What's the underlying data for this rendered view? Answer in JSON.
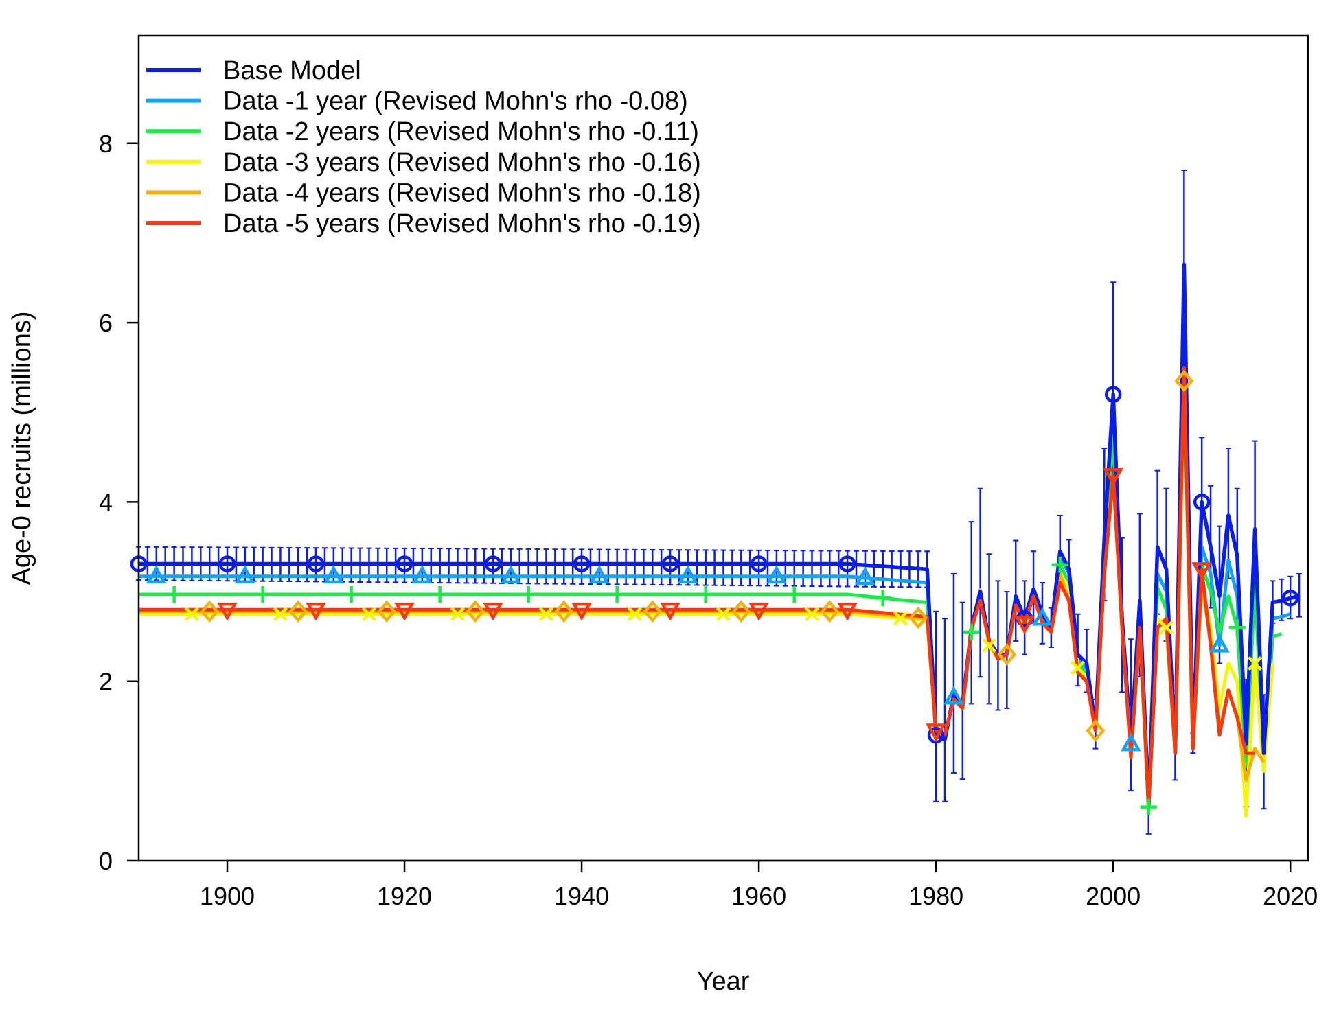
{
  "chart_data": {
    "type": "line",
    "title": "",
    "xlabel": "Year",
    "ylabel": "Age-0 recruits (millions)",
    "xlim": [
      1890,
      2022
    ],
    "ylim": [
      0,
      9.2
    ],
    "xticks": [
      1900,
      1920,
      1940,
      1960,
      1980,
      2000,
      2020
    ],
    "yticks": [
      0,
      2,
      4,
      6,
      8
    ],
    "legend_position": "top-left",
    "grid": false,
    "series": [
      {
        "name": "Base Model",
        "color": "#0a1ee8",
        "marker": "circle",
        "x": [
          1890,
          1979,
          1980,
          1981,
          1982,
          1983,
          1984,
          1985,
          1986,
          1987,
          1988,
          1989,
          1990,
          1991,
          1992,
          1993,
          1994,
          1995,
          1996,
          1997,
          1998,
          1999,
          2000,
          2001,
          2002,
          2003,
          2004,
          2005,
          2006,
          2007,
          2008,
          2009,
          2010,
          2011,
          2012,
          2013,
          2014,
          2015,
          2016,
          2017,
          2018,
          2019,
          2020,
          2021
        ],
        "values": [
          3.31,
          3.25,
          1.4,
          1.35,
          1.85,
          1.75,
          2.6,
          3.0,
          2.45,
          2.3,
          2.3,
          2.95,
          2.7,
          3.03,
          2.75,
          2.6,
          3.45,
          3.25,
          2.3,
          2.2,
          1.5,
          3.6,
          5.2,
          2.7,
          1.3,
          2.9,
          0.6,
          3.5,
          3.25,
          1.2,
          6.65,
          1.3,
          4.0,
          3.5,
          2.95,
          3.85,
          3.4,
          1.3,
          3.7,
          1.2,
          2.88,
          2.9,
          2.93,
          2.95
        ],
        "ci_low": [
          3.13,
          3.05,
          0.66,
          0.66,
          0.98,
          0.91,
          1.75,
          2.05,
          1.75,
          1.68,
          1.7,
          2.45,
          2.3,
          2.65,
          2.42,
          2.38,
          3.12,
          2.92,
          1.95,
          1.88,
          1.25,
          2.9,
          4.15,
          1.88,
          0.78,
          2.05,
          0.3,
          2.75,
          2.45,
          0.9,
          5.7,
          1.2,
          3.28,
          2.82,
          2.2,
          3.15,
          2.7,
          0.6,
          3.0,
          0.58,
          2.65,
          2.68,
          2.7,
          2.72
        ],
        "ci_high": [
          3.5,
          3.45,
          2.78,
          2.7,
          3.2,
          2.88,
          3.78,
          4.15,
          3.42,
          3.12,
          3.0,
          3.57,
          3.12,
          3.45,
          3.1,
          2.82,
          3.85,
          3.58,
          2.75,
          2.58,
          1.8,
          4.6,
          6.45,
          3.6,
          2.47,
          3.87,
          0.95,
          4.35,
          4.15,
          1.5,
          7.7,
          1.42,
          4.72,
          4.18,
          3.73,
          4.6,
          4.15,
          2.02,
          4.68,
          1.85,
          3.12,
          3.14,
          3.17,
          3.2
        ]
      },
      {
        "name": "Data -1 year (Revised Mohn's rho -0.08)",
        "color": "#15a2f0",
        "marker": "triangle",
        "x": [
          1890,
          1979,
          1980,
          1981,
          1982,
          1983,
          1984,
          1985,
          1986,
          1987,
          1988,
          1989,
          1990,
          1991,
          1992,
          1993,
          1994,
          1995,
          1996,
          1997,
          1998,
          1999,
          2000,
          2001,
          2002,
          2003,
          2004,
          2005,
          2006,
          2007,
          2008,
          2009,
          2010,
          2011,
          2012,
          2013,
          2014,
          2015,
          2016,
          2017,
          2018,
          2019,
          2020
        ],
        "values": [
          3.17,
          3.1,
          1.45,
          1.4,
          1.82,
          1.75,
          2.6,
          3.0,
          2.45,
          2.3,
          2.3,
          2.95,
          2.7,
          3.0,
          2.7,
          2.6,
          3.4,
          3.2,
          2.25,
          2.15,
          1.5,
          3.5,
          4.9,
          2.7,
          1.3,
          2.85,
          0.6,
          3.2,
          3.0,
          1.2,
          6.0,
          1.25,
          3.5,
          3.2,
          2.4,
          3.35,
          2.95,
          1.25,
          3.3,
          1.0,
          2.7,
          2.72,
          2.75
        ]
      },
      {
        "name": "Data -2 years (Revised Mohn's rho -0.11)",
        "color": "#1ee84a",
        "marker": "plus",
        "x": [
          1890,
          1979,
          1980,
          1981,
          1982,
          1983,
          1984,
          1985,
          1986,
          1987,
          1988,
          1989,
          1990,
          1991,
          1992,
          1993,
          1994,
          1995,
          1996,
          1997,
          1998,
          1999,
          2000,
          2001,
          2002,
          2003,
          2004,
          2005,
          2006,
          2007,
          2008,
          2009,
          2010,
          2011,
          2012,
          2013,
          2014,
          2015,
          2016,
          2017,
          2018,
          2019
        ],
        "values": [
          2.97,
          2.88,
          1.45,
          1.4,
          1.8,
          1.7,
          2.55,
          2.95,
          2.4,
          2.25,
          2.3,
          2.9,
          2.65,
          2.95,
          2.65,
          2.55,
          3.3,
          3.1,
          2.2,
          2.1,
          1.45,
          3.4,
          4.75,
          2.65,
          1.25,
          2.65,
          0.6,
          3.05,
          2.8,
          1.2,
          5.7,
          1.25,
          3.3,
          3.0,
          2.55,
          2.95,
          2.6,
          1.05,
          3.1,
          1.0,
          2.5,
          2.53
        ]
      },
      {
        "name": "Data -3 years (Revised Mohn's rho -0.16)",
        "color": "#f5f50a",
        "marker": "x",
        "x": [
          1890,
          1979,
          1980,
          1981,
          1982,
          1983,
          1984,
          1985,
          1986,
          1987,
          1988,
          1989,
          1990,
          1991,
          1992,
          1993,
          1994,
          1995,
          1996,
          1997,
          1998,
          1999,
          2000,
          2001,
          2002,
          2003,
          2004,
          2005,
          2006,
          2007,
          2008,
          2009,
          2010,
          2011,
          2012,
          2013,
          2014,
          2015,
          2016,
          2017,
          2018
        ],
        "values": [
          2.75,
          2.68,
          1.45,
          1.4,
          1.8,
          1.7,
          2.6,
          2.95,
          2.4,
          2.25,
          2.3,
          2.9,
          2.65,
          2.95,
          2.65,
          2.55,
          3.2,
          3.05,
          2.15,
          2.05,
          1.45,
          3.2,
          4.3,
          2.6,
          1.2,
          2.55,
          0.55,
          2.7,
          2.6,
          1.2,
          5.3,
          1.25,
          3.1,
          2.6,
          1.7,
          2.2,
          2.0,
          0.5,
          2.2,
          1.0,
          2.2
        ]
      },
      {
        "name": "Data -4 years (Revised Mohn's rho -0.18)",
        "color": "#f5b00a",
        "marker": "diamond",
        "x": [
          1890,
          1979,
          1980,
          1981,
          1982,
          1983,
          1984,
          1985,
          1986,
          1987,
          1988,
          1989,
          1990,
          1991,
          1992,
          1993,
          1994,
          1995,
          1996,
          1997,
          1998,
          1999,
          2000,
          2001,
          2002,
          2003,
          2004,
          2005,
          2006,
          2007,
          2008,
          2009,
          2010,
          2011,
          2012,
          2013,
          2014,
          2015,
          2016,
          2017
        ],
        "values": [
          2.78,
          2.7,
          1.45,
          1.4,
          1.8,
          1.7,
          2.6,
          3.02,
          2.45,
          2.25,
          2.3,
          2.85,
          2.65,
          2.95,
          2.65,
          2.55,
          3.2,
          2.9,
          2.1,
          2.0,
          1.45,
          3.2,
          4.3,
          2.6,
          1.2,
          2.6,
          0.6,
          2.6,
          2.65,
          1.2,
          5.35,
          1.25,
          3.1,
          2.45,
          1.45,
          1.9,
          1.6,
          0.9,
          1.25,
          1.1
        ]
      },
      {
        "name": "Data -5 years (Revised Mohn's rho -0.19)",
        "color": "#f53a10",
        "marker": "triangle-down",
        "x": [
          1890,
          1979,
          1980,
          1981,
          1982,
          1983,
          1984,
          1985,
          1986,
          1987,
          1988,
          1989,
          1990,
          1991,
          1992,
          1993,
          1994,
          1995,
          1996,
          1997,
          1998,
          1999,
          2000,
          2001,
          2002,
          2003,
          2004,
          2005,
          2006,
          2007,
          2008,
          2009,
          2010,
          2011,
          2012,
          2013,
          2014,
          2015,
          2016
        ],
        "values": [
          2.8,
          2.72,
          1.45,
          1.4,
          1.8,
          1.7,
          2.6,
          2.9,
          2.45,
          2.25,
          2.3,
          2.85,
          2.65,
          2.95,
          2.65,
          2.55,
          3.1,
          2.9,
          2.1,
          2.0,
          1.45,
          3.2,
          4.3,
          2.6,
          1.15,
          2.6,
          0.6,
          2.6,
          2.7,
          1.2,
          5.5,
          1.25,
          3.25,
          2.4,
          1.4,
          1.9,
          1.6,
          1.2,
          1.2
        ]
      }
    ]
  }
}
